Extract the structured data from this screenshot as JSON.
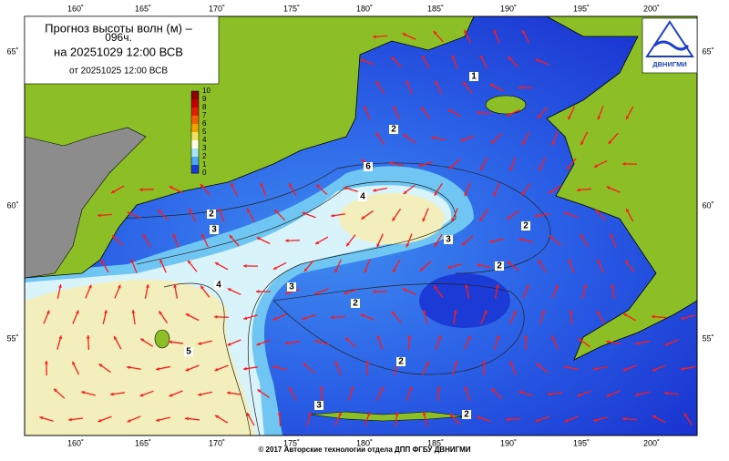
{
  "title": {
    "line1": "Прогноз высоты волн (м) –",
    "line2": "096ч.",
    "line3": "на 20251029 12:00 ВСВ",
    "line4": "от 20251025 12:00 ВСВ"
  },
  "logo": "ДВНИГМИ",
  "lon_labels": [
    "160˚",
    "165˚",
    "170˚",
    "175˚",
    "180˚",
    "185˚",
    "190˚",
    "195˚",
    "200˚"
  ],
  "lat_labels": [
    "65˚",
    "60˚",
    "55˚"
  ],
  "colorbar_ticks": [
    "10",
    "9",
    "8",
    "7",
    "6",
    "5",
    "4",
    "3",
    "2",
    "1",
    "0"
  ],
  "contour_labels": [
    "1",
    "2",
    "6",
    "2",
    "3",
    "4",
    "3",
    "2",
    "2",
    "3",
    "4",
    "2",
    "5",
    "2",
    "3",
    "2"
  ],
  "footer": "© 2017 Авторские технологии отдела ДПП ФГБУ ДВНИГМИ"
}
